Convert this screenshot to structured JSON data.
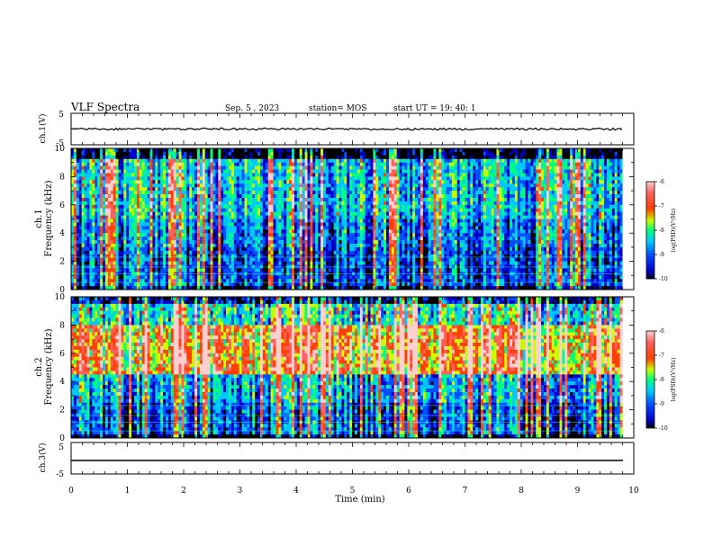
{
  "header": {
    "title": "VLF Spectra",
    "date": "Sep. 5 , 2023",
    "station": "station= MOS",
    "start": "start UT = 19: 40: 1"
  },
  "colors": {
    "background": "#ffffff",
    "axis": "#000000",
    "trace": "#000000",
    "colormap": [
      "#000000",
      "#0000c8",
      "#0050ff",
      "#00c8ff",
      "#00ff80",
      "#c8ff00",
      "#ff4000",
      "#ff6060",
      "#ffd0d0"
    ]
  },
  "chart_data": [
    {
      "type": "line",
      "panel": "ch.1(V)",
      "ylabel": "ch.1(V)",
      "ylim": [
        -5,
        5
      ],
      "yticks": [
        "5",
        "-5"
      ],
      "series": [
        {
          "x": [
            0,
            9.8
          ],
          "values": [
            0,
            0
          ]
        }
      ]
    },
    {
      "type": "heatmap",
      "panel": "ch.1 spectrogram",
      "ylabel": "ch.1 Frequency (kHz)",
      "ylim": [
        0,
        10
      ],
      "yticks": [
        "0",
        "2",
        "4",
        "6",
        "8",
        "10"
      ],
      "xlim": [
        0,
        10
      ],
      "data_extent_min": 9.8,
      "colorbar": {
        "label": "log(PSD)(V²/Hz)",
        "range": [
          -10,
          -6
        ],
        "ticks": [
          "-6",
          "-7",
          "-8",
          "-9",
          "-10"
        ]
      }
    },
    {
      "type": "heatmap",
      "panel": "ch.2 spectrogram",
      "ylabel": "ch.2 Frequency (kHz)",
      "ylim": [
        0,
        10
      ],
      "yticks": [
        "0",
        "2",
        "4",
        "6",
        "8",
        "10"
      ],
      "xlim": [
        0,
        10
      ],
      "data_extent_min": 9.8,
      "colorbar": {
        "label": "log(PSD)(V²/Hz)",
        "range": [
          -10,
          -6
        ],
        "ticks": [
          "-6",
          "-7",
          "-8",
          "-9",
          "-10"
        ]
      }
    },
    {
      "type": "line",
      "panel": "ch.3(V)",
      "ylabel": "ch.3(V)",
      "ylim": [
        -5,
        5
      ],
      "yticks": [
        "5",
        "-5"
      ],
      "series": [
        {
          "x": [
            0,
            9.8
          ],
          "values": [
            0,
            0
          ]
        }
      ]
    }
  ],
  "xaxis": {
    "label": "Time (min)",
    "ticks": [
      "0",
      "1",
      "2",
      "3",
      "4",
      "5",
      "6",
      "7",
      "8",
      "9",
      "10"
    ]
  },
  "ch1_label": "ch.1",
  "ch2_label": "ch.2",
  "freq_label": "Frequency (kHz)",
  "psd_label": "log(PSD)(V²/Hz)"
}
